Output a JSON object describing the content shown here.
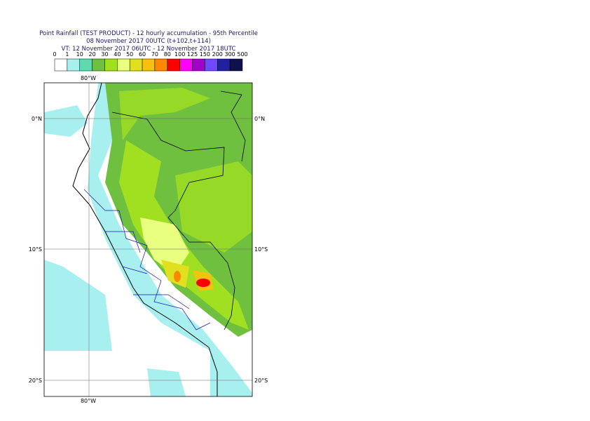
{
  "header": {
    "title": "Point Rainfall (TEST PRODUCT) - 12 hourly accumulation - 95th Percentile",
    "base": "08 November 2017 00UTC (t+102,t+114)",
    "valid": "VT: 12 November 2017 06UTC - 12 November 2017 18UTC"
  },
  "legend": {
    "labels": [
      "0",
      "1",
      "10",
      "20",
      "30",
      "40",
      "50",
      "60",
      "70",
      "80",
      "100",
      "125",
      "150",
      "200",
      "300",
      "500"
    ],
    "colors": [
      "#ffffff",
      "#a8f0f0",
      "#60d8b0",
      "#70c040",
      "#a0e020",
      "#e8ff80",
      "#e0e020",
      "#f8c010",
      "#ff8800",
      "#ff0000",
      "#ff00ff",
      "#a000c8",
      "#7048ff",
      "#2020a0",
      "#101050"
    ]
  },
  "map": {
    "lon_labels": [
      "80°W"
    ],
    "lat_labels": [
      "0°N",
      "10°S",
      "20°S"
    ]
  }
}
